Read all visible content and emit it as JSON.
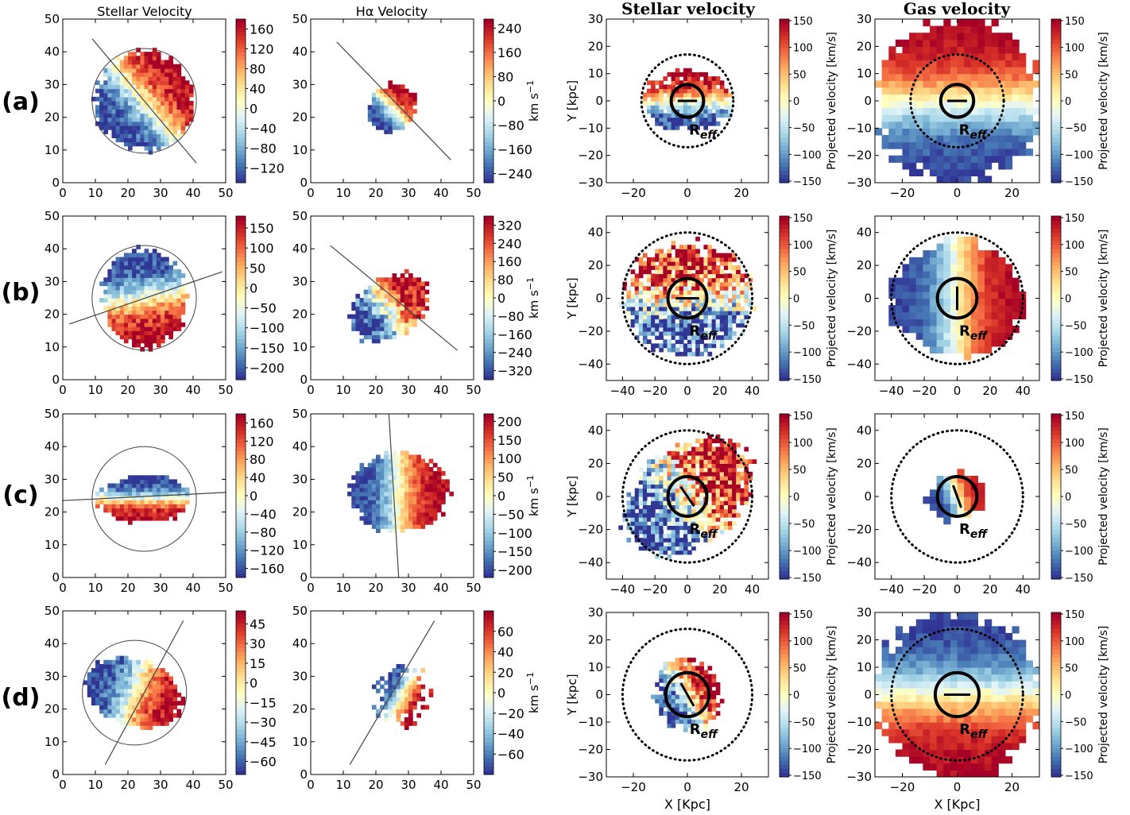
{
  "header": {
    "left_col1_title": "Stellar Velocity",
    "left_col2_title": "Hα Velocity",
    "right_col1_title": "Stellar velocity",
    "right_col2_title": "Gas velocity"
  },
  "row_labels": [
    "(a)",
    "(b)",
    "(c)",
    "(d)"
  ],
  "labels": {
    "kms_unit": "km s",
    "kms_exp": "−1",
    "proj_vel": "Projected velocity [km/s]",
    "y_kpc": "Y [kpc]",
    "x_kpc": "X [Kpc]",
    "reff_main": "R",
    "reff_sub": "eff"
  },
  "colors": {
    "colormap": [
      "#313695",
      "#4575b4",
      "#74add1",
      "#abd9e9",
      "#e0f3f8",
      "#ffffbf",
      "#fee090",
      "#fdae61",
      "#f46d43",
      "#d73027",
      "#a50026"
    ],
    "axis": "#000000",
    "line": "#444444"
  },
  "chart_data": [
    {
      "panel": "a-stellar",
      "type": "heatmap",
      "xlim": [
        0,
        50
      ],
      "ylim": [
        0,
        50
      ],
      "xticks": [
        0,
        10,
        20,
        30,
        40,
        50
      ],
      "yticks": [
        0,
        10,
        20,
        30,
        40,
        50
      ],
      "colorbar_ticks": [
        "160",
        "120",
        "80",
        "40",
        "0",
        "−40",
        "−80",
        "−120"
      ],
      "vrange": [
        -150,
        180
      ],
      "center": [
        25,
        25
      ],
      "circle_radius": 16,
      "pa_line": [
        [
          9,
          44
        ],
        [
          41,
          6
        ]
      ],
      "galaxy": {
        "rx": 15,
        "ry": 15,
        "angle": 40,
        "noise": 0.12
      }
    },
    {
      "panel": "a-halpha",
      "type": "heatmap",
      "xlim": [
        0,
        50
      ],
      "ylim": [
        0,
        50
      ],
      "xticks": [
        0,
        10,
        20,
        30,
        40,
        50
      ],
      "yticks": [
        0,
        10,
        20,
        30,
        40,
        50
      ],
      "colorbar_ticks": [
        "240",
        "160",
        "80",
        "0",
        "−80",
        "−160",
        "−240"
      ],
      "colorbar_label": "km s−1",
      "vrange": [
        -270,
        270
      ],
      "center": [
        25,
        23
      ],
      "pa_line": [
        [
          8,
          43
        ],
        [
          43,
          7
        ]
      ],
      "galaxy": {
        "rx": 8,
        "ry": 7,
        "angle": 45,
        "noise": 0.1
      }
    },
    {
      "panel": "b-stellar",
      "type": "heatmap",
      "xlim": [
        0,
        50
      ],
      "ylim": [
        0,
        50
      ],
      "xticks": [
        0,
        10,
        20,
        30,
        40,
        50
      ],
      "yticks": [
        0,
        10,
        20,
        30,
        40,
        50
      ],
      "colorbar_ticks": [
        "150",
        "100",
        "50",
        "0",
        "−50",
        "−100",
        "−150",
        "−200"
      ],
      "vrange": [
        -230,
        180
      ],
      "center": [
        25,
        25
      ],
      "circle_radius": 16,
      "pa_line": [
        [
          2,
          17
        ],
        [
          49,
          33
        ]
      ],
      "galaxy": {
        "rx": 15,
        "ry": 13,
        "angle": -80,
        "noise": 0.12
      }
    },
    {
      "panel": "b-halpha",
      "type": "heatmap",
      "xlim": [
        0,
        50
      ],
      "ylim": [
        0,
        50
      ],
      "xticks": [
        0,
        10,
        20,
        30,
        40,
        50
      ],
      "yticks": [
        0,
        10,
        20,
        30,
        40,
        50
      ],
      "colorbar_ticks": [
        "320",
        "240",
        "160",
        "80",
        "0",
        "−80",
        "−160",
        "−240",
        "−320"
      ],
      "colorbar_label": "km s−1",
      "vrange": [
        -360,
        360
      ],
      "center": [
        24,
        22
      ],
      "pa_line": [
        [
          6,
          41
        ],
        [
          45,
          9
        ]
      ],
      "galaxy": {
        "rx": 13,
        "ry": 9,
        "angle": 35,
        "noise": 0.2
      }
    },
    {
      "panel": "c-stellar",
      "type": "heatmap",
      "xlim": [
        0,
        50
      ],
      "ylim": [
        0,
        50
      ],
      "xticks": [
        0,
        10,
        20,
        30,
        40,
        50
      ],
      "yticks": [
        0,
        10,
        20,
        30,
        40,
        50
      ],
      "colorbar_ticks": [
        "160",
        "120",
        "80",
        "40",
        "0",
        "−40",
        "−80",
        "−120",
        "−160"
      ],
      "vrange": [
        -180,
        180
      ],
      "center": [
        25,
        24
      ],
      "circle_radius": 16,
      "pa_line": [
        [
          0,
          23.5
        ],
        [
          50,
          26
        ]
      ],
      "galaxy": {
        "rx": 7,
        "ry": 14,
        "angle": -90,
        "noise": 0.1
      }
    },
    {
      "panel": "c-halpha",
      "type": "heatmap",
      "xlim": [
        0,
        50
      ],
      "ylim": [
        0,
        50
      ],
      "xticks": [
        0,
        10,
        20,
        30,
        40,
        50
      ],
      "yticks": [
        0,
        10,
        20,
        30,
        40,
        50
      ],
      "colorbar_ticks": [
        "200",
        "150",
        "100",
        "50",
        "0",
        "−50",
        "−100",
        "−150",
        "−200"
      ],
      "colorbar_label": "km s−1",
      "vrange": [
        -220,
        220
      ],
      "center": [
        27,
        26
      ],
      "pa_line": [
        [
          24,
          50
        ],
        [
          27,
          0
        ]
      ],
      "galaxy": {
        "rx": 15,
        "ry": 12,
        "angle": 0,
        "noise": 0.08
      }
    },
    {
      "panel": "d-stellar",
      "type": "heatmap",
      "xlim": [
        0,
        50
      ],
      "ylim": [
        0,
        50
      ],
      "xticks": [
        0,
        10,
        20,
        30,
        40,
        50
      ],
      "yticks": [
        0,
        10,
        20,
        30,
        40,
        50
      ],
      "colorbar_ticks": [
        "45",
        "30",
        "15",
        "0",
        "−15",
        "−30",
        "−45",
        "−60"
      ],
      "vrange": [
        -70,
        55
      ],
      "center": [
        22,
        25
      ],
      "circle_radius": 16,
      "pa_line": [
        [
          13,
          3
        ],
        [
          37,
          47
        ]
      ],
      "galaxy": {
        "rx": 15,
        "ry": 10,
        "angle": -20,
        "noise": 0.12
      }
    },
    {
      "panel": "d-halpha",
      "type": "heatmap",
      "xlim": [
        0,
        50
      ],
      "ylim": [
        0,
        50
      ],
      "xticks": [
        0,
        10,
        20,
        30,
        40,
        50
      ],
      "yticks": [
        0,
        10,
        20,
        30,
        40,
        50
      ],
      "colorbar_ticks": [
        "60",
        "40",
        "20",
        "0",
        "−20",
        "−40",
        "−60"
      ],
      "colorbar_label": "km s−1",
      "vrange": [
        -80,
        80
      ],
      "center": [
        28,
        24
      ],
      "pa_line": [
        [
          12,
          3
        ],
        [
          38,
          47
        ]
      ],
      "galaxy": {
        "rx": 9,
        "ry": 10,
        "angle": -30,
        "noise": 0.1,
        "sparse": true
      }
    },
    {
      "panel": "a-sim-stellar",
      "type": "heatmap",
      "xlim": [
        -30,
        30
      ],
      "ylim": [
        -30,
        30
      ],
      "xticks": [
        -20,
        0,
        20
      ],
      "yticks": [
        30,
        20,
        10,
        0,
        -10,
        -20,
        -30
      ],
      "colorbar_ticks": [
        "150",
        "100",
        "50",
        "0",
        "−50",
        "−100",
        "−150"
      ],
      "colorbar_label": "Projected velocity [km/s]",
      "vrange": [
        -150,
        150
      ],
      "ylabel": "Y [kpc]",
      "dotted_radius": 17,
      "reff_radius": 6,
      "galaxy": {
        "rx": 11,
        "ry": 17,
        "angle": 90,
        "noise": 0.15
      }
    },
    {
      "panel": "a-sim-gas",
      "type": "heatmap",
      "xlim": [
        -30,
        30
      ],
      "ylim": [
        -30,
        30
      ],
      "xticks": [
        -20,
        0,
        20
      ],
      "yticks": [
        30,
        20,
        10,
        0,
        -10,
        -20,
        -30
      ],
      "colorbar_ticks": [
        "150",
        "100",
        "50",
        "0",
        "−50",
        "−100",
        "−150"
      ],
      "colorbar_label": "Projected velocity [km/s]",
      "vrange": [
        -150,
        150
      ],
      "dotted_radius": 17,
      "reff_radius": 6,
      "galaxy": {
        "rx": 30,
        "ry": 30,
        "angle": 90,
        "noise": 0.05
      }
    },
    {
      "panel": "b-sim-stellar",
      "type": "heatmap",
      "xlim": [
        -50,
        50
      ],
      "ylim": [
        -50,
        50
      ],
      "xticks": [
        -40,
        -20,
        0,
        20,
        40
      ],
      "yticks": [
        40,
        20,
        0,
        -20,
        -40
      ],
      "colorbar_ticks": [
        "150",
        "100",
        "50",
        "0",
        "−50",
        "−100",
        "−150"
      ],
      "colorbar_label": "Projected velocity [km/s]",
      "vrange": [
        -150,
        150
      ],
      "ylabel": "Y [kpc]",
      "dotted_radius": 40,
      "reff_radius": 12,
      "galaxy": {
        "rx": 34,
        "ry": 40,
        "angle": 90,
        "noise": 0.35
      }
    },
    {
      "panel": "b-sim-gas",
      "type": "heatmap",
      "xlim": [
        -50,
        50
      ],
      "ylim": [
        -50,
        50
      ],
      "xticks": [
        -40,
        -20,
        0,
        20,
        40
      ],
      "yticks": [
        40,
        20,
        0,
        -20,
        -40
      ],
      "colorbar_ticks": [
        "150",
        "100",
        "50",
        "0",
        "−50",
        "−100",
        "−150"
      ],
      "colorbar_label": "Projected velocity [km/s]",
      "vrange": [
        -150,
        150
      ],
      "dotted_radius": 40,
      "reff_radius": 12,
      "galaxy": {
        "rx": 40,
        "ry": 35,
        "angle": 0,
        "noise": 0.05
      }
    },
    {
      "panel": "c-sim-stellar",
      "type": "heatmap",
      "xlim": [
        -50,
        50
      ],
      "ylim": [
        -50,
        50
      ],
      "xticks": [
        -40,
        -20,
        0,
        20,
        40
      ],
      "yticks": [
        40,
        20,
        0,
        -20,
        -40
      ],
      "colorbar_ticks": [
        "150",
        "100",
        "50",
        "0",
        "−50",
        "−100",
        "−150"
      ],
      "colorbar_label": "Projected velocity [km/s]",
      "vrange": [
        -150,
        150
      ],
      "ylabel": "Y [kpc]",
      "dotted_radius": 40,
      "reff_radius": 12,
      "galaxy": {
        "rx": 45,
        "ry": 30,
        "angle": 35,
        "noise": 0.35
      }
    },
    {
      "panel": "c-sim-gas",
      "type": "heatmap",
      "xlim": [
        -50,
        50
      ],
      "ylim": [
        -50,
        50
      ],
      "xticks": [
        -40,
        -20,
        0,
        20,
        40
      ],
      "yticks": [
        40,
        20,
        0,
        -20,
        -40
      ],
      "colorbar_ticks": [
        "150",
        "100",
        "50",
        "0",
        "−50",
        "−100",
        "−150"
      ],
      "colorbar_label": "Projected velocity [km/s]",
      "vrange": [
        -150,
        150
      ],
      "dotted_radius": 40,
      "reff_radius": 12,
      "galaxy": {
        "rx": 18,
        "ry": 14,
        "angle": 20,
        "noise": 0.05
      }
    },
    {
      "panel": "d-sim-stellar",
      "type": "heatmap",
      "xlim": [
        -30,
        30
      ],
      "ylim": [
        -30,
        30
      ],
      "xticks": [
        -20,
        0,
        20
      ],
      "yticks": [
        30,
        20,
        10,
        0,
        -10,
        -20,
        -30
      ],
      "colorbar_ticks": [
        "150",
        "100",
        "50",
        "0",
        "−50",
        "−100",
        "−150"
      ],
      "colorbar_label": "Projected velocity [km/s]",
      "vrange": [
        -150,
        150
      ],
      "ylabel": "Y [kpc]",
      "xlabel": "X [Kpc]",
      "dotted_radius": 24,
      "reff_radius": 8,
      "galaxy": {
        "rx": 12,
        "ry": 14,
        "angle": 30,
        "noise": 0.2
      }
    },
    {
      "panel": "d-sim-gas",
      "type": "heatmap",
      "xlim": [
        -30,
        30
      ],
      "ylim": [
        -30,
        30
      ],
      "xticks": [
        -20,
        0,
        20
      ],
      "yticks": [
        30,
        20,
        10,
        0,
        -10,
        -20,
        -30
      ],
      "colorbar_ticks": [
        "150",
        "100",
        "50",
        "0",
        "−50",
        "−100",
        "−150"
      ],
      "colorbar_label": "Projected velocity [km/s]",
      "vrange": [
        -150,
        150
      ],
      "xlabel": "X [Kpc]",
      "dotted_radius": 24,
      "reff_radius": 8,
      "galaxy": {
        "rx": 30,
        "ry": 30,
        "angle": -90,
        "noise": 0.05
      }
    }
  ]
}
